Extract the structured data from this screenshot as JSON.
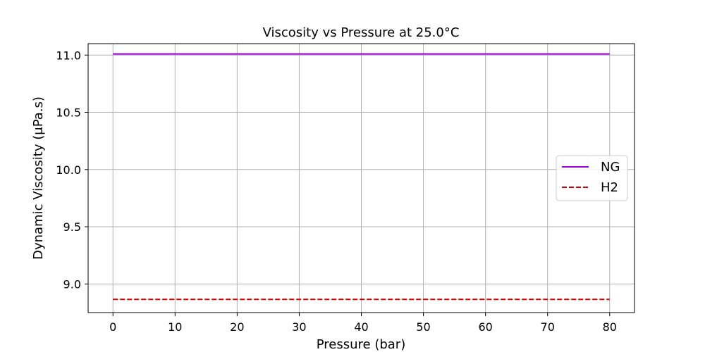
{
  "chart_data": {
    "type": "line",
    "title": "Viscosity vs Pressure at  25.0°C",
    "xlabel": "Pressure (bar)",
    "ylabel": "Dynamic Viscosity (μPa.s)",
    "xlim": [
      -4,
      84
    ],
    "ylim": [
      8.75,
      11.1
    ],
    "xticks": [
      0,
      10,
      20,
      30,
      40,
      50,
      60,
      70,
      80
    ],
    "xtick_labels": [
      "0",
      "10",
      "20",
      "30",
      "40",
      "50",
      "60",
      "70",
      "80"
    ],
    "yticks": [
      9.0,
      9.5,
      10.0,
      10.5,
      11.0
    ],
    "ytick_labels": [
      "9.0",
      "9.5",
      "10.0",
      "10.5",
      "11.0"
    ],
    "grid": true,
    "legend_position": "center-right",
    "series": [
      {
        "name": "NG",
        "color": "#9400d3",
        "style": "solid",
        "x": [
          0,
          10,
          20,
          30,
          40,
          50,
          60,
          70,
          80
        ],
        "y": [
          11.01,
          11.01,
          11.01,
          11.01,
          11.01,
          11.01,
          11.01,
          11.01,
          11.01
        ]
      },
      {
        "name": "H2",
        "color": "#cc0000",
        "style": "dashed",
        "x": [
          0,
          10,
          20,
          30,
          40,
          50,
          60,
          70,
          80
        ],
        "y": [
          8.865,
          8.865,
          8.865,
          8.865,
          8.865,
          8.865,
          8.865,
          8.865,
          8.865
        ]
      }
    ]
  }
}
